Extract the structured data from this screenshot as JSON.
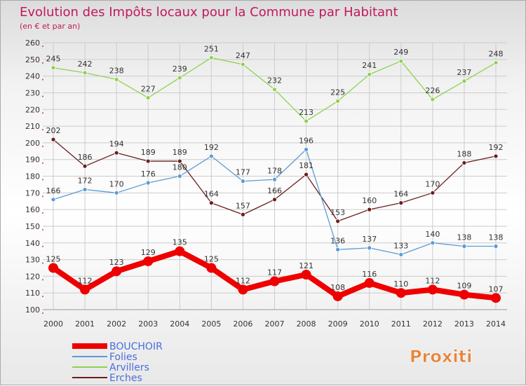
{
  "chart_data": {
    "type": "line",
    "title": "Evolution des Impôts locaux pour la Commune par Habitant",
    "subtitle": "(en € et par an)",
    "xlabel": "",
    "ylabel": "",
    "x": [
      "2000",
      "2001",
      "2002",
      "2003",
      "2004",
      "2005",
      "2006",
      "2007",
      "2008",
      "2009",
      "2010",
      "2011",
      "2012",
      "2013",
      "2014"
    ],
    "ylim": [
      100,
      260
    ],
    "ytick_step": 10,
    "grid": true,
    "legend_position": "bottom-left",
    "series": [
      {
        "name": "BOUCHOIR",
        "color": "#ee0000",
        "values": [
          125,
          112,
          123,
          129,
          135,
          125,
          112,
          117,
          121,
          108,
          116,
          110,
          112,
          109,
          107
        ]
      },
      {
        "name": "Folies",
        "color": "#5b9bd5",
        "values": [
          166,
          172,
          170,
          176,
          180,
          192,
          177,
          178,
          196,
          136,
          137,
          133,
          140,
          138,
          138
        ]
      },
      {
        "name": "Arvillers",
        "color": "#8fd14f",
        "values": [
          245,
          242,
          238,
          227,
          239,
          251,
          247,
          232,
          213,
          225,
          241,
          249,
          226,
          237,
          248
        ]
      },
      {
        "name": "Erches",
        "color": "#6b1d1d",
        "values": [
          202,
          186,
          194,
          189,
          189,
          164,
          157,
          166,
          181,
          153,
          160,
          164,
          170,
          188,
          192
        ]
      }
    ]
  },
  "colors": {
    "title": "#c2185b",
    "legend_text": "#4a6ce0",
    "axis_text": "#333333",
    "grid": "#cccccc"
  },
  "brand": {
    "logo_text": "Proxiti"
  }
}
